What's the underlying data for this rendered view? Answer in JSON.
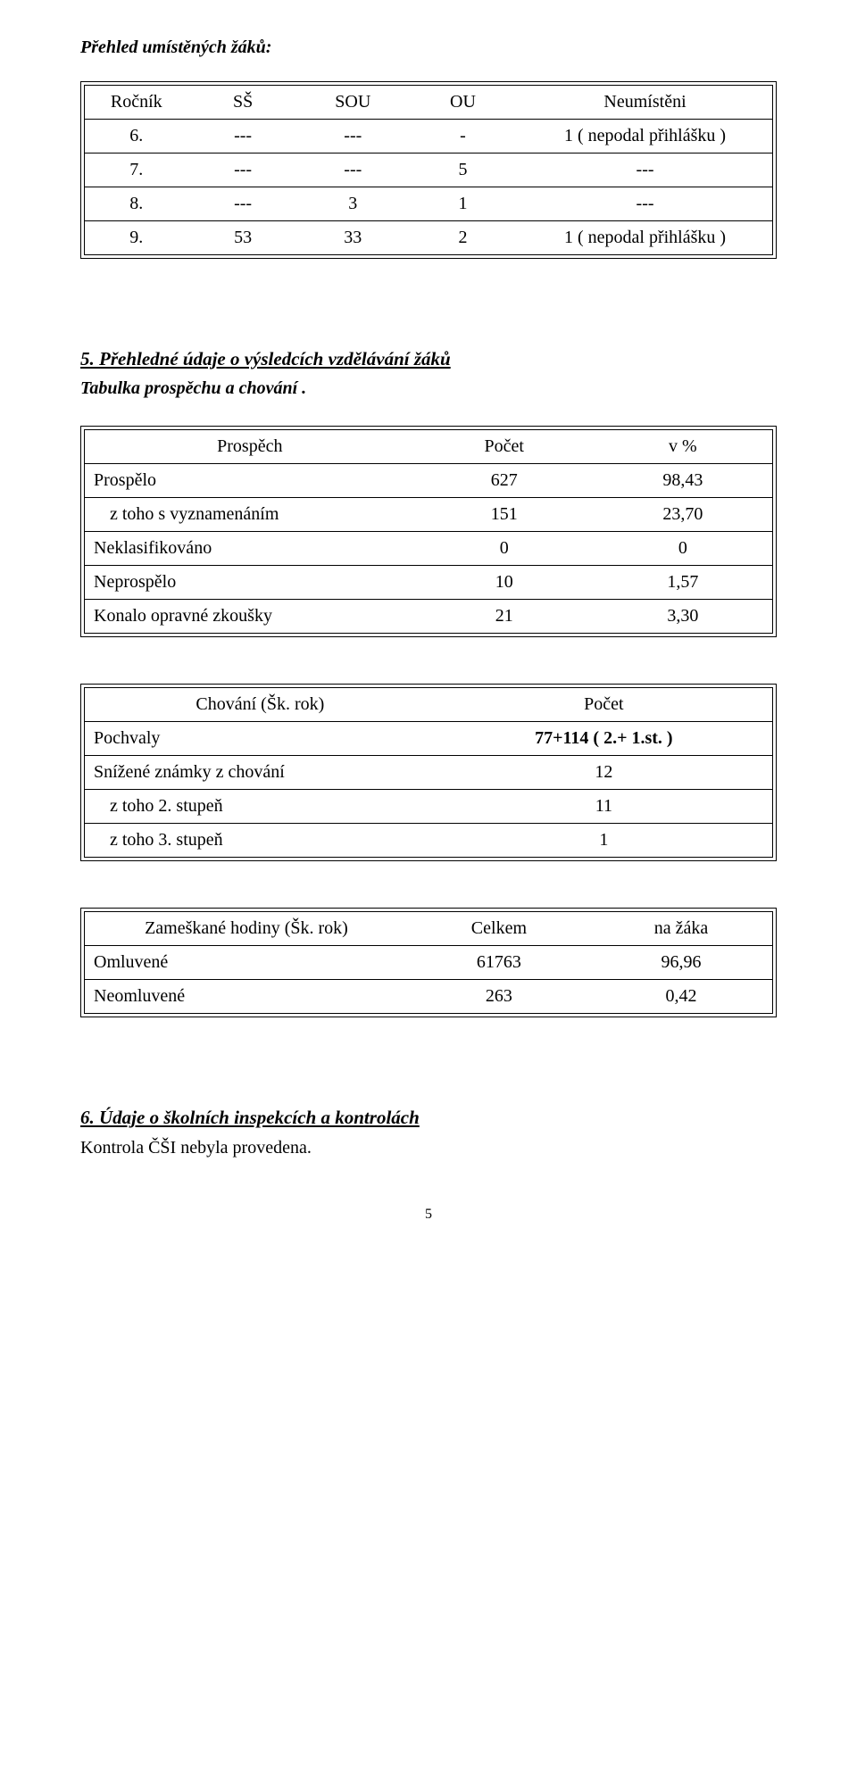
{
  "title1": "Přehled umístěných žáků:",
  "table1": {
    "cols": [
      "Ročník",
      "SŠ",
      "SOU",
      "OU",
      "Neumístěni"
    ],
    "rows": [
      [
        "6.",
        "---",
        "---",
        "-",
        "1 ( nepodal přihlášku )"
      ],
      [
        "7.",
        "---",
        "---",
        "5",
        "---"
      ],
      [
        "8.",
        "---",
        "3",
        "1",
        "---"
      ],
      [
        "9.",
        "53",
        "33",
        "2",
        "1 ( nepodal přihlášku )"
      ]
    ],
    "col_widths": [
      "15%",
      "16%",
      "16%",
      "16%",
      "37%"
    ]
  },
  "title2": "5. Přehledné údaje o výsledcích vzdělávání žáků",
  "sub2": "Tabulka prospěchu a chování .",
  "table2": {
    "cols": [
      "Prospěch",
      "Počet",
      "v %"
    ],
    "rows": [
      [
        "Prospělo",
        "627",
        "98,43"
      ],
      [
        "z toho s vyznamenáním",
        "151",
        "23,70"
      ],
      [
        "Neklasifikováno",
        "0",
        "0"
      ],
      [
        "Neprospělo",
        "10",
        "1,57"
      ],
      [
        "Konalo opravné zkoušky",
        "21",
        "3,30"
      ]
    ],
    "col_widths": [
      "48%",
      "26%",
      "26%"
    ],
    "indent_rows": [
      1
    ]
  },
  "table3": {
    "cols": [
      "Chování (Šk. rok)",
      "Počet"
    ],
    "rows": [
      [
        "Pochvaly",
        "77+114 ( 2.+ 1.st. )"
      ],
      [
        "Snížené známky z chování",
        "12"
      ],
      [
        "z toho  2. stupeň",
        "11"
      ],
      [
        "z toho 3. stupeň",
        "1"
      ]
    ],
    "bold_rows": [
      0
    ],
    "indent_rows": [
      2,
      3
    ],
    "col_widths": [
      "51%",
      "49%"
    ]
  },
  "table4": {
    "cols": [
      "Zameškané hodiny (Šk. rok)",
      "Celkem",
      "na žáka"
    ],
    "rows": [
      [
        "Omluvené",
        "61763",
        "96,96"
      ],
      [
        "Neomluvené",
        "263",
        "0,42"
      ]
    ],
    "col_widths": [
      "47%",
      "26.5%",
      "26.5%"
    ]
  },
  "title3": "6. Údaje o školních inspekcích a kontrolách",
  "line3": "Kontrola ČŠI nebyla provedena.",
  "page_number": "5"
}
